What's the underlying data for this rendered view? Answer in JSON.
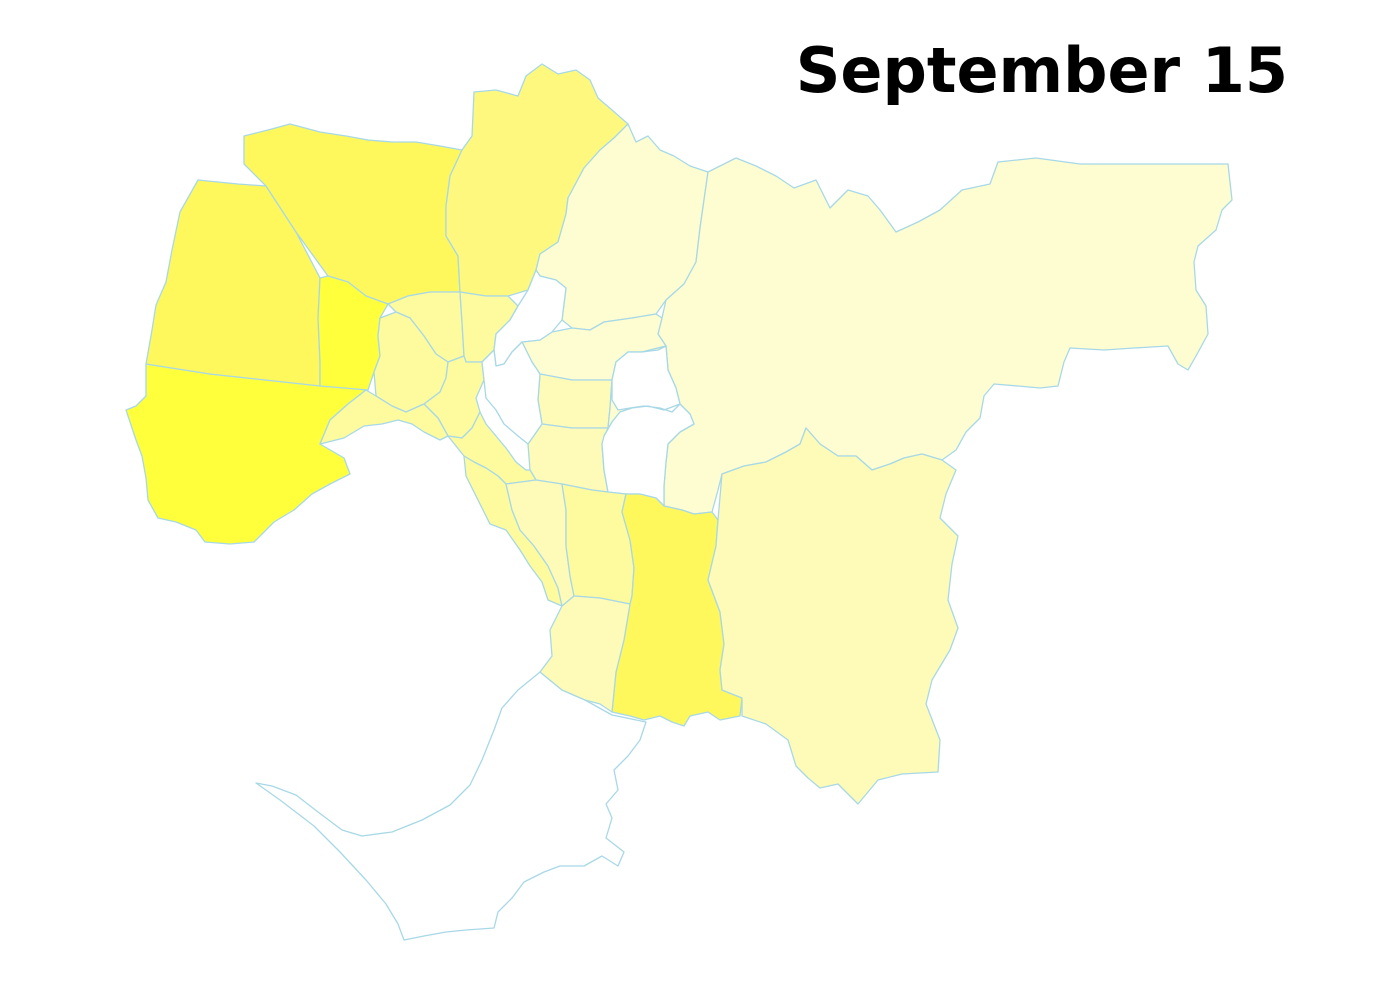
{
  "title": "September 15",
  "palette": {
    "border": "#a8d8e6",
    "background": "#ffffff",
    "level_0": "#ffffff",
    "level_1": "#fefdd2",
    "level_2": "#fefbb8",
    "level_3": "#fefa9e",
    "level_4": "#fef97e",
    "level_5": "#fff85c",
    "level_6": "#ffff3c"
  },
  "regions": [
    {
      "id": "west-lower",
      "level": 6
    },
    {
      "id": "west-upper",
      "level": 5
    },
    {
      "id": "north-west",
      "level": 5
    },
    {
      "id": "north-central",
      "level": 4
    },
    {
      "id": "west-inner",
      "level": 6
    },
    {
      "id": "inner-west-a",
      "level": 3
    },
    {
      "id": "inner-west-b",
      "level": 3
    },
    {
      "id": "inner-north-a",
      "level": 3
    },
    {
      "id": "inner-north-b",
      "level": 3
    },
    {
      "id": "bay-west-strip",
      "level": 3
    },
    {
      "id": "north-east-upper",
      "level": 1
    },
    {
      "id": "east-large",
      "level": 1
    },
    {
      "id": "north-east-lower",
      "level": 1
    },
    {
      "id": "mid-east-a",
      "level": 2
    },
    {
      "id": "mid-east-b",
      "level": 2
    },
    {
      "id": "east-middle-small",
      "level": 1
    },
    {
      "id": "gap-north",
      "level": 0
    },
    {
      "id": "gap-middle",
      "level": 0
    },
    {
      "id": "gap-east",
      "level": 0
    },
    {
      "id": "bayside-a",
      "level": 3
    },
    {
      "id": "bayside-b",
      "level": 3
    },
    {
      "id": "bayside-c",
      "level": 2
    },
    {
      "id": "south-east-column",
      "level": 3
    },
    {
      "id": "south-east-bright",
      "level": 5
    },
    {
      "id": "south-east-large",
      "level": 2
    },
    {
      "id": "peninsula-north",
      "level": 2
    },
    {
      "id": "peninsula",
      "level": 0
    }
  ]
}
